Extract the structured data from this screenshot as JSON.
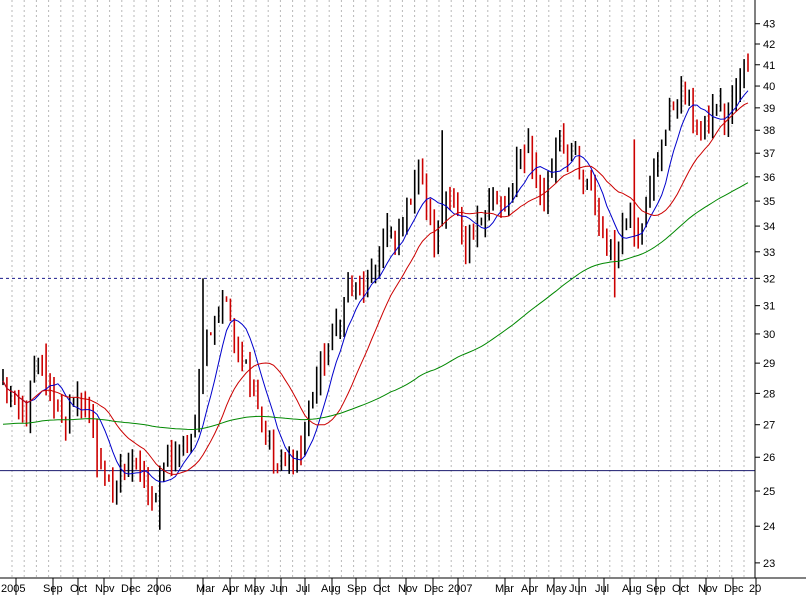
{
  "chart_data": {
    "type": "candlestick",
    "title": "",
    "xlabel": "",
    "ylabel": "",
    "y_scale": "log",
    "ylim": [
      22.6,
      44.2
    ],
    "y_ticks": [
      23,
      24,
      25,
      26,
      27,
      28,
      29,
      30,
      31,
      32,
      33,
      34,
      35,
      36,
      37,
      38,
      39,
      40,
      41,
      42,
      43
    ],
    "x_tick_labels": [
      "2005",
      "Sep",
      "Oct",
      "Nov",
      "Dec",
      "2006",
      "Mar",
      "Apr",
      "May",
      "Jun",
      "Jul",
      "Aug",
      "Sep",
      "Oct",
      "Nov",
      "Dec",
      "2007",
      "Mar",
      "Apr",
      "May",
      "Jun",
      "Jul",
      "Aug",
      "Sep",
      "Oct",
      "Nov",
      "Dec",
      "20"
    ],
    "grid": {
      "vertical": "dotted",
      "horizontal": "none"
    },
    "reference_lines": [
      {
        "value": 32.0,
        "style": "dashed",
        "color": "#1a1a8c"
      },
      {
        "value": 25.6,
        "style": "solid",
        "color": "#1a1a6e"
      }
    ],
    "price_path": [
      [
        0,
        28.3
      ],
      [
        2,
        27.8
      ],
      [
        4,
        27.2
      ],
      [
        6,
        27.3
      ],
      [
        8,
        28.6
      ],
      [
        10,
        28.9
      ],
      [
        12,
        28.0
      ],
      [
        14,
        27.4
      ],
      [
        16,
        27.1
      ],
      [
        18,
        27.5
      ],
      [
        20,
        27.9
      ],
      [
        22,
        27.3
      ],
      [
        24,
        26.2
      ],
      [
        26,
        25.3
      ],
      [
        28,
        25.0
      ],
      [
        30,
        25.6
      ],
      [
        32,
        26.0
      ],
      [
        34,
        25.8
      ],
      [
        36,
        25.1
      ],
      [
        38,
        24.6
      ],
      [
        40,
        25.4
      ],
      [
        42,
        25.8
      ],
      [
        44,
        26.0
      ],
      [
        46,
        26.2
      ],
      [
        48,
        26.6
      ],
      [
        50,
        28.2
      ],
      [
        52,
        29.8
      ],
      [
        54,
        30.5
      ],
      [
        56,
        31.3
      ],
      [
        58,
        30.6
      ],
      [
        60,
        29.7
      ],
      [
        62,
        29.0
      ],
      [
        64,
        28.3
      ],
      [
        66,
        27.0
      ],
      [
        68,
        26.2
      ],
      [
        70,
        25.6
      ],
      [
        72,
        25.7
      ],
      [
        74,
        26.1
      ],
      [
        76,
        26.2
      ],
      [
        78,
        27.5
      ],
      [
        80,
        28.4
      ],
      [
        82,
        29.3
      ],
      [
        84,
        29.9
      ],
      [
        86,
        30.8
      ],
      [
        88,
        31.6
      ],
      [
        90,
        31.5
      ],
      [
        92,
        31.8
      ],
      [
        94,
        32.0
      ],
      [
        96,
        33.0
      ],
      [
        98,
        33.8
      ],
      [
        100,
        33.1
      ],
      [
        102,
        34.2
      ],
      [
        104,
        35.3
      ],
      [
        106,
        36.5
      ],
      [
        108,
        34.9
      ],
      [
        110,
        33.3
      ],
      [
        112,
        34.6
      ],
      [
        114,
        35.6
      ],
      [
        116,
        34.3
      ],
      [
        118,
        32.8
      ],
      [
        120,
        33.4
      ],
      [
        122,
        34.4
      ],
      [
        124,
        35.3
      ],
      [
        126,
        35.0
      ],
      [
        128,
        34.5
      ],
      [
        130,
        35.6
      ],
      [
        132,
        36.9
      ],
      [
        134,
        37.4
      ],
      [
        136,
        35.8
      ],
      [
        138,
        35.2
      ],
      [
        140,
        36.5
      ],
      [
        142,
        37.9
      ],
      [
        144,
        37.0
      ],
      [
        146,
        36.6
      ],
      [
        148,
        35.6
      ],
      [
        150,
        35.2
      ],
      [
        152,
        34.1
      ],
      [
        154,
        33.4
      ],
      [
        156,
        32.8
      ],
      [
        158,
        33.9
      ],
      [
        160,
        34.8
      ],
      [
        162,
        33.8
      ],
      [
        164,
        34.8
      ],
      [
        166,
        36.0
      ],
      [
        168,
        37.4
      ],
      [
        170,
        38.7
      ],
      [
        172,
        39.6
      ],
      [
        174,
        39.8
      ],
      [
        176,
        38.6
      ],
      [
        178,
        37.8
      ],
      [
        180,
        38.2
      ],
      [
        182,
        39.3
      ],
      [
        184,
        38.6
      ],
      [
        186,
        39.4
      ],
      [
        188,
        40.3
      ],
      [
        190,
        41.0
      ]
    ],
    "spikes": [
      [
        24,
        27.2,
        25.4
      ],
      [
        40,
        25.6,
        23.9
      ],
      [
        51,
        32.0,
        28.7
      ],
      [
        112,
        38.0,
        34.3
      ],
      [
        156,
        33.0,
        31.3
      ],
      [
        161,
        37.6,
        33.2
      ]
    ],
    "series": [
      {
        "color": "#0000cc",
        "ma_period": 8
      },
      {
        "color": "#cc0000",
        "ma_period": 20
      },
      {
        "color": "#008800",
        "ma_period": 100,
        "warmup_start": 27.0
      }
    ],
    "candle_colors": {
      "up": "#000000",
      "down": "#cc0000"
    }
  }
}
